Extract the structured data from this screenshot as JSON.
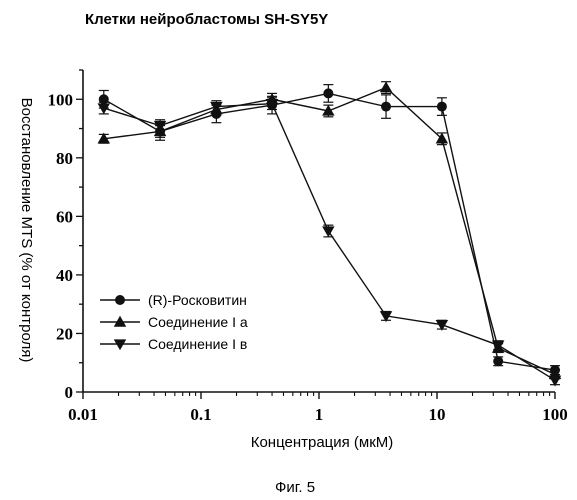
{
  "figure_caption": "Фиг. 5",
  "chart_data": {
    "type": "line",
    "title": "Клетки нейробластомы SH-SY5Y",
    "xlabel": "Концентрация (мкМ)",
    "ylabel": "Восстановление MTS (% от контроля)",
    "x_scale": "log",
    "xlim": [
      0.01,
      100
    ],
    "ylim": [
      0,
      110
    ],
    "x_ticks": [
      0.01,
      0.1,
      1,
      10,
      100
    ],
    "x_tick_labels": [
      "0.01",
      "0.1",
      "1",
      "10",
      "100"
    ],
    "y_ticks": [
      0,
      20,
      40,
      60,
      80,
      100
    ],
    "y_tick_labels": [
      "0",
      "20",
      "40",
      "60",
      "80",
      "100"
    ],
    "grid": false,
    "legend_position": "bottom-left",
    "series": [
      {
        "name": "(R)-Росковитин",
        "marker": "circle",
        "x": [
          0.015,
          0.045,
          0.135,
          0.4,
          1.2,
          3.7,
          11,
          33,
          100
        ],
        "y": [
          100,
          89,
          95,
          98,
          102,
          97.5,
          97.5,
          10.5,
          7.5
        ],
        "err": [
          3,
          3,
          3,
          3,
          3,
          4,
          3,
          1.5,
          1.5
        ]
      },
      {
        "name": "Соединение I а",
        "marker": "triangle-up",
        "x": [
          0.015,
          0.045,
          0.135,
          0.4,
          1.2,
          3.7,
          11,
          33,
          100
        ],
        "y": [
          86.5,
          89,
          96.5,
          100,
          96,
          104,
          86.5,
          15,
          6
        ],
        "err": [
          1.5,
          2,
          2,
          2,
          2,
          2,
          2,
          1.5,
          1.5
        ]
      },
      {
        "name": "Соединение I в",
        "marker": "triangle-down",
        "x": [
          0.015,
          0.045,
          0.135,
          0.4,
          1.2,
          3.7,
          11,
          33,
          100
        ],
        "y": [
          97,
          91,
          97.5,
          98.5,
          55,
          26,
          23,
          16,
          4
        ],
        "err": [
          2,
          2,
          2,
          2,
          2,
          1.5,
          1.5,
          1.5,
          1.5
        ]
      }
    ]
  }
}
